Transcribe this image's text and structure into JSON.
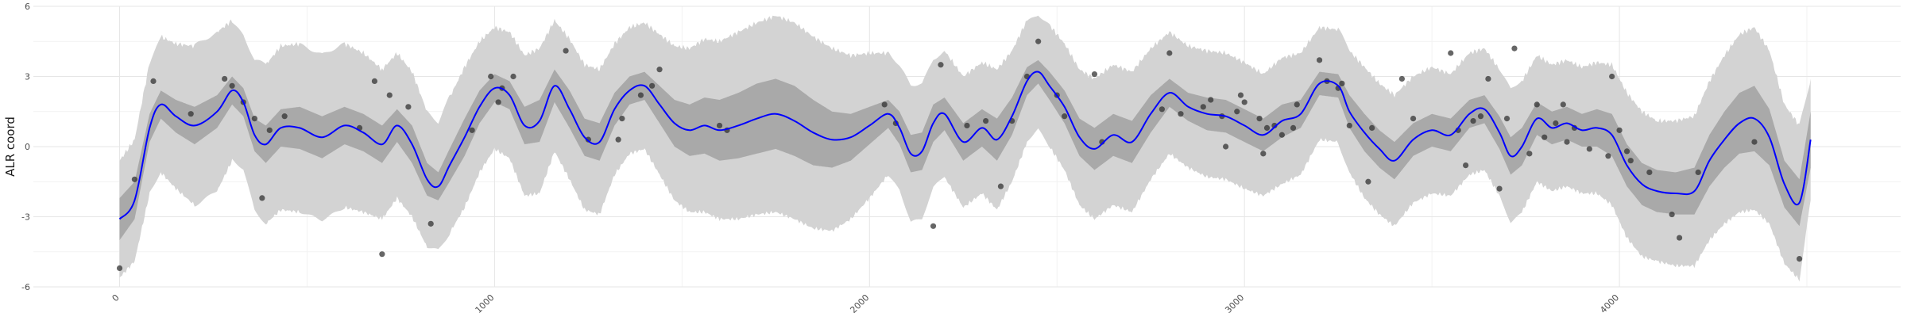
{
  "chart_data": {
    "type": "line",
    "title": "",
    "xlabel": "",
    "ylabel": "ALR coord",
    "xlim": [
      -230,
      4750
    ],
    "ylim": [
      -6,
      6
    ],
    "x_ticks": [
      0,
      1000,
      2000,
      3000,
      4000
    ],
    "x_tick_labels": [
      "0",
      "1000",
      "2000",
      "3000",
      "4000"
    ],
    "y_ticks": [
      -6,
      -3,
      0,
      3,
      6
    ],
    "y_tick_labels": [
      "-6",
      "-3",
      "0",
      "3",
      "6"
    ],
    "grid": true,
    "legend": "none",
    "colors": {
      "mean_line": "#0000ff",
      "inner_band": "#a9a9a9",
      "outer_band": "#d3d3d3",
      "points": "#333333",
      "grid_major": "#e6e6e6",
      "grid_minor": "#f2f2f2"
    },
    "mean_curve": {
      "x": [
        0,
        40,
        80,
        110,
        150,
        200,
        260,
        300,
        330,
        360,
        390,
        430,
        480,
        540,
        600,
        650,
        700,
        740,
        780,
        820,
        850,
        880,
        920,
        960,
        1000,
        1040,
        1080,
        1120,
        1160,
        1200,
        1240,
        1280,
        1320,
        1360,
        1400,
        1440,
        1480,
        1520,
        1560,
        1600,
        1650,
        1700,
        1750,
        1800,
        1850,
        1900,
        1950,
        2000,
        2050,
        2080,
        2110,
        2140,
        2170,
        2200,
        2250,
        2300,
        2340,
        2380,
        2420,
        2450,
        2480,
        2520,
        2560,
        2600,
        2650,
        2700,
        2750,
        2800,
        2850,
        2900,
        2950,
        3000,
        3050,
        3100,
        3150,
        3200,
        3250,
        3280,
        3320,
        3360,
        3400,
        3450,
        3500,
        3550,
        3600,
        3640,
        3680,
        3710,
        3740,
        3780,
        3820,
        3860,
        3900,
        3940,
        3980,
        4020,
        4060,
        4100,
        4150,
        4200,
        4240,
        4280,
        4320,
        4360,
        4400,
        4440,
        4480,
        4510
      ],
      "y": [
        -3.1,
        -2.3,
        0.8,
        1.8,
        1.3,
        0.9,
        1.5,
        2.4,
        1.9,
        0.5,
        0.1,
        0.8,
        0.8,
        0.4,
        0.9,
        0.6,
        0.1,
        0.9,
        0.1,
        -1.4,
        -1.7,
        -0.8,
        0.4,
        1.7,
        2.5,
        2.2,
        0.9,
        1.1,
        2.6,
        1.6,
        0.4,
        0.2,
        1.6,
        2.4,
        2.6,
        1.8,
        1.0,
        0.7,
        0.9,
        0.7,
        0.9,
        1.2,
        1.4,
        1.1,
        0.6,
        0.3,
        0.4,
        0.9,
        1.4,
        0.8,
        -0.3,
        -0.2,
        1.0,
        1.4,
        0.2,
        0.8,
        0.3,
        1.3,
        2.8,
        3.2,
        2.6,
        1.7,
        0.4,
        -0.1,
        0.5,
        0.2,
        1.4,
        2.3,
        1.7,
        1.4,
        1.3,
        0.9,
        0.5,
        1.1,
        1.4,
        2.7,
        2.6,
        1.5,
        0.6,
        -0.1,
        -0.6,
        0.3,
        0.7,
        0.5,
        1.4,
        1.6,
        0.6,
        -0.4,
        0.0,
        1.2,
        0.8,
        1.0,
        0.7,
        0.8,
        0.5,
        -0.8,
        -1.6,
        -1.9,
        -2.0,
        -1.9,
        -0.6,
        0.3,
        1.0,
        1.2,
        0.4,
        -1.6,
        -2.4,
        0.3
      ]
    },
    "inner_band_halfwidth": [
      0.9,
      0.8,
      0.6,
      0.6,
      0.7,
      0.8,
      0.7,
      0.6,
      0.6,
      0.7,
      0.8,
      0.8,
      0.9,
      0.9,
      0.8,
      0.8,
      0.8,
      0.7,
      0.8,
      0.7,
      0.6,
      0.7,
      0.8,
      0.7,
      0.6,
      0.6,
      0.8,
      0.9,
      0.7,
      0.8,
      0.8,
      0.8,
      0.7,
      0.6,
      0.6,
      0.8,
      1.0,
      1.1,
      1.2,
      1.3,
      1.4,
      1.5,
      1.5,
      1.5,
      1.4,
      1.2,
      1.0,
      0.8,
      0.6,
      0.7,
      0.8,
      0.8,
      0.8,
      0.7,
      0.8,
      0.8,
      0.9,
      0.8,
      0.6,
      0.5,
      0.6,
      0.7,
      0.8,
      0.9,
      0.9,
      0.9,
      0.8,
      0.6,
      0.6,
      0.7,
      0.7,
      0.7,
      0.7,
      0.7,
      0.6,
      0.5,
      0.5,
      0.7,
      0.8,
      0.8,
      0.8,
      0.7,
      0.7,
      0.7,
      0.6,
      0.6,
      0.7,
      0.8,
      0.8,
      0.7,
      0.7,
      0.7,
      0.7,
      0.8,
      0.9,
      0.9,
      0.9,
      0.9,
      0.9,
      1.0,
      1.1,
      1.2,
      1.3,
      1.4,
      1.2,
      1.0,
      1.0,
      1.2
    ],
    "outer_band_halfwidth": [
      2.5,
      2.6,
      2.8,
      2.9,
      3.1,
      3.4,
      3.4,
      3.0,
      2.9,
      3.2,
      3.4,
      3.5,
      3.6,
      3.6,
      3.5,
      3.4,
      3.2,
      3.1,
      3.1,
      2.9,
      2.7,
      2.9,
      3.0,
      2.8,
      2.6,
      2.7,
      3.0,
      3.1,
      2.8,
      3.0,
      3.1,
      3.1,
      2.8,
      2.7,
      2.7,
      3.0,
      3.3,
      3.5,
      3.7,
      3.8,
      4.0,
      4.1,
      4.2,
      4.2,
      4.1,
      3.9,
      3.5,
      3.1,
      2.6,
      2.6,
      2.9,
      2.9,
      2.8,
      2.7,
      2.8,
      2.8,
      3.0,
      2.8,
      2.6,
      2.5,
      2.6,
      2.7,
      2.9,
      3.0,
      3.0,
      3.0,
      2.8,
      2.6,
      2.6,
      2.7,
      2.7,
      2.7,
      2.6,
      2.7,
      2.6,
      2.4,
      2.4,
      2.6,
      2.8,
      2.8,
      2.8,
      2.7,
      2.7,
      2.6,
      2.6,
      2.6,
      2.7,
      2.8,
      2.8,
      2.7,
      2.7,
      2.7,
      2.7,
      2.8,
      3.0,
      3.1,
      3.1,
      3.0,
      3.1,
      3.2,
      3.4,
      3.6,
      3.8,
      3.9,
      3.7,
      3.4,
      3.3,
      2.6
    ],
    "points": {
      "x": [
        0,
        40,
        90,
        190,
        280,
        300,
        330,
        360,
        380,
        400,
        440,
        640,
        680,
        700,
        720,
        770,
        830,
        940,
        990,
        1010,
        1020,
        1050,
        1190,
        1250,
        1330,
        1340,
        1390,
        1420,
        1440,
        1600,
        1620,
        2040,
        2070,
        2170,
        2190,
        2260,
        2310,
        2350,
        2380,
        2420,
        2450,
        2500,
        2520,
        2600,
        2620,
        2780,
        2800,
        2830,
        2890,
        2910,
        2940,
        2950,
        2980,
        2990,
        3000,
        3040,
        3050,
        3060,
        3080,
        3100,
        3130,
        3140,
        3200,
        3220,
        3250,
        3260,
        3280,
        3330,
        3340,
        3420,
        3450,
        3550,
        3570,
        3590,
        3610,
        3630,
        3650,
        3680,
        3700,
        3720,
        3760,
        3780,
        3800,
        3830,
        3850,
        3860,
        3880,
        3920,
        3970,
        3980,
        4000,
        4020,
        4030,
        4080,
        4140,
        4160,
        4210,
        4360,
        4480
      ],
      "y": [
        -5.2,
        -1.4,
        2.8,
        1.4,
        2.9,
        2.6,
        1.9,
        1.2,
        -2.2,
        0.7,
        1.3,
        0.8,
        2.8,
        -4.6,
        2.2,
        1.7,
        -3.3,
        0.7,
        3.0,
        1.9,
        2.5,
        3.0,
        4.1,
        0.3,
        0.3,
        1.2,
        2.2,
        2.6,
        3.3,
        0.9,
        0.7,
        1.8,
        1.0,
        -3.4,
        3.5,
        0.9,
        1.1,
        -1.7,
        1.1,
        3.0,
        4.5,
        2.2,
        1.3,
        3.1,
        0.2,
        1.6,
        4.0,
        1.4,
        1.7,
        2.0,
        1.3,
        0.0,
        1.5,
        2.2,
        1.9,
        1.2,
        -0.3,
        0.8,
        0.9,
        0.5,
        0.8,
        1.8,
        3.7,
        2.8,
        2.5,
        2.7,
        0.9,
        -1.5,
        0.8,
        2.9,
        1.2,
        4.0,
        0.7,
        -0.8,
        1.1,
        1.3,
        2.9,
        -1.8,
        1.2,
        4.2,
        -0.3,
        1.8,
        0.4,
        1.0,
        1.8,
        0.2,
        0.8,
        -0.1,
        -0.4,
        3.0,
        0.7,
        -0.2,
        -0.6,
        -1.1,
        -2.9,
        -3.9,
        -1.1,
        0.2,
        -4.8
      ]
    }
  }
}
